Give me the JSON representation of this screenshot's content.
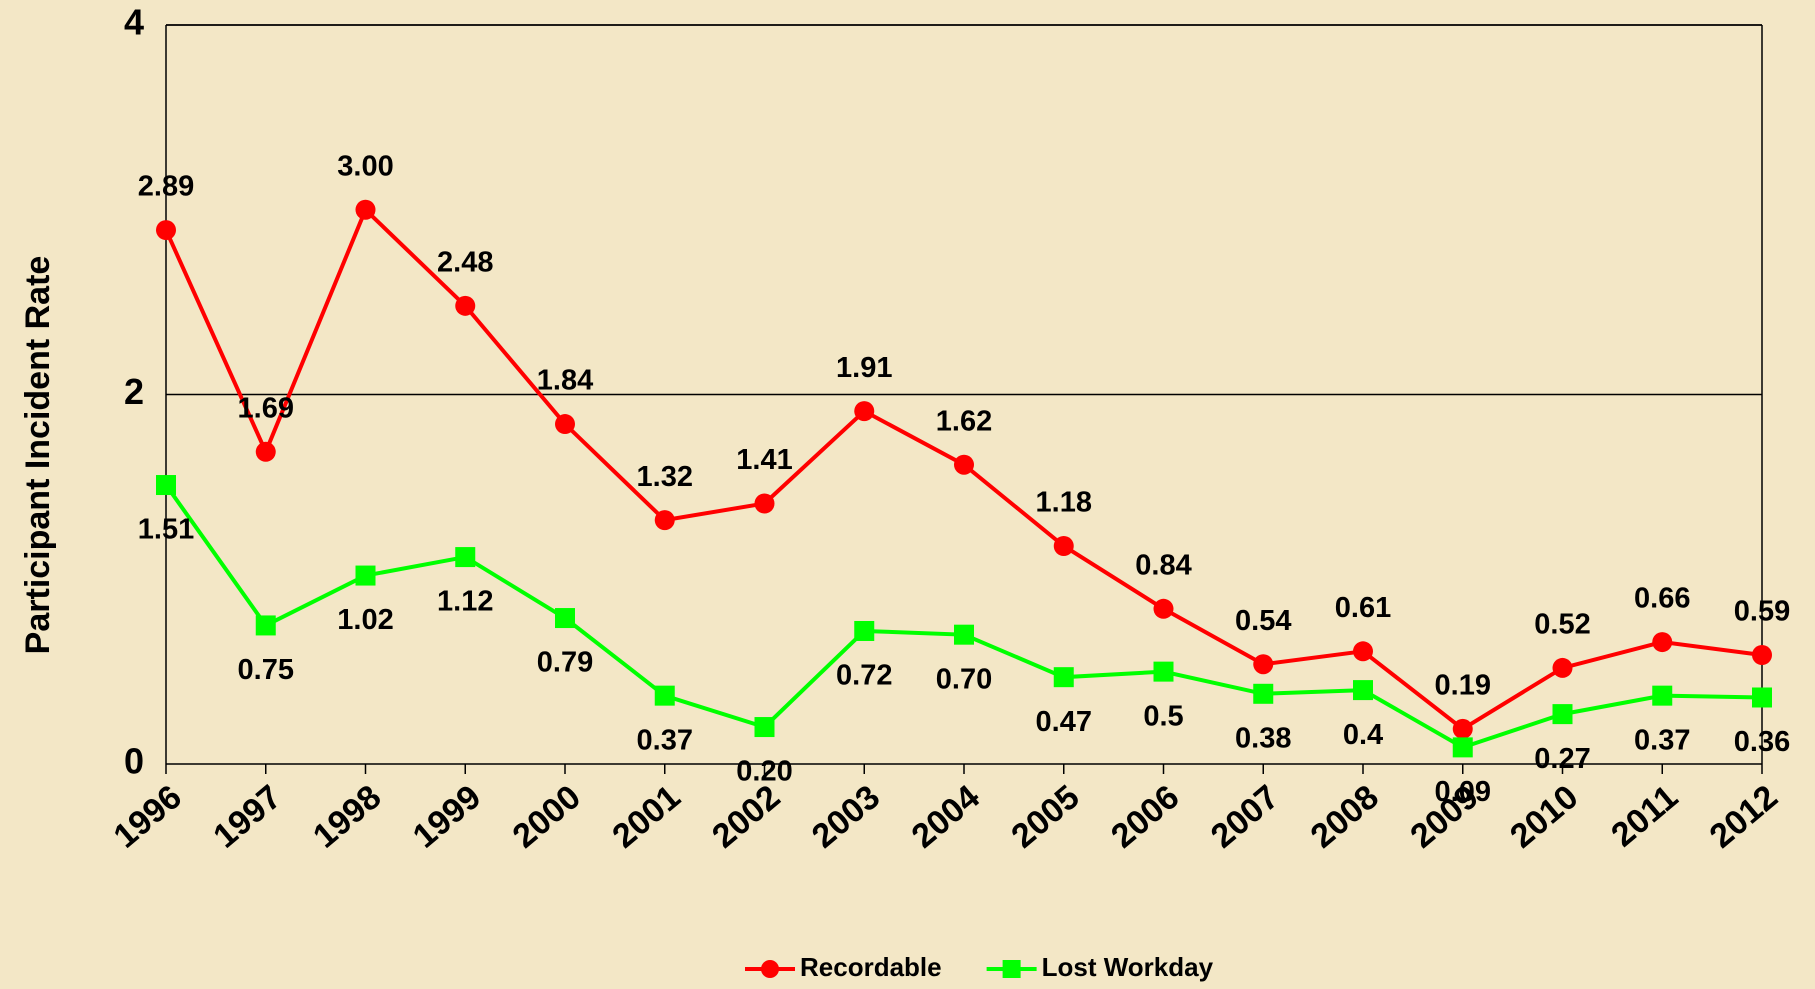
{
  "chart_data": {
    "type": "line",
    "y_axis_label": "Participant Incident Rate",
    "categories": [
      "1996",
      "1997",
      "1998",
      "1999",
      "2000",
      "2001",
      "2002",
      "2003",
      "2004",
      "2005",
      "2006",
      "2007",
      "2008",
      "2009",
      "2010",
      "2011",
      "2012"
    ],
    "series": [
      {
        "name": "Recordable",
        "color": "#ff0000",
        "values": [
          2.89,
          1.69,
          3.0,
          2.48,
          1.84,
          1.32,
          1.41,
          1.91,
          1.62,
          1.18,
          0.84,
          0.54,
          0.61,
          0.19,
          0.52,
          0.66,
          0.59
        ],
        "value_labels": [
          "2.89",
          "1.69",
          "3.00",
          "2.48",
          "1.84",
          "1.32",
          "1.41",
          "1.91",
          "1.62",
          "1.18",
          "0.84",
          "0.54",
          "0.61",
          "0.19",
          "0.52",
          "0.66",
          "0.59"
        ]
      },
      {
        "name": "Lost Workday",
        "color": "#00ff00",
        "values": [
          1.51,
          0.75,
          1.02,
          1.12,
          0.79,
          0.37,
          0.2,
          0.72,
          0.7,
          0.47,
          0.5,
          0.38,
          0.4,
          0.09,
          0.27,
          0.37,
          0.36
        ],
        "value_labels": [
          "1.51",
          "0.75",
          "1.02",
          "1.12",
          "0.79",
          "0.37",
          "0.20",
          "0.72",
          "0.70",
          "0.47",
          "0.5",
          "0.38",
          "0.4",
          "0.09",
          "0.27",
          "0.37",
          "0.36"
        ]
      }
    ],
    "ylim": [
      0,
      4
    ],
    "yticks": [
      0,
      2,
      4
    ],
    "grid": true,
    "legend": "bottom"
  }
}
